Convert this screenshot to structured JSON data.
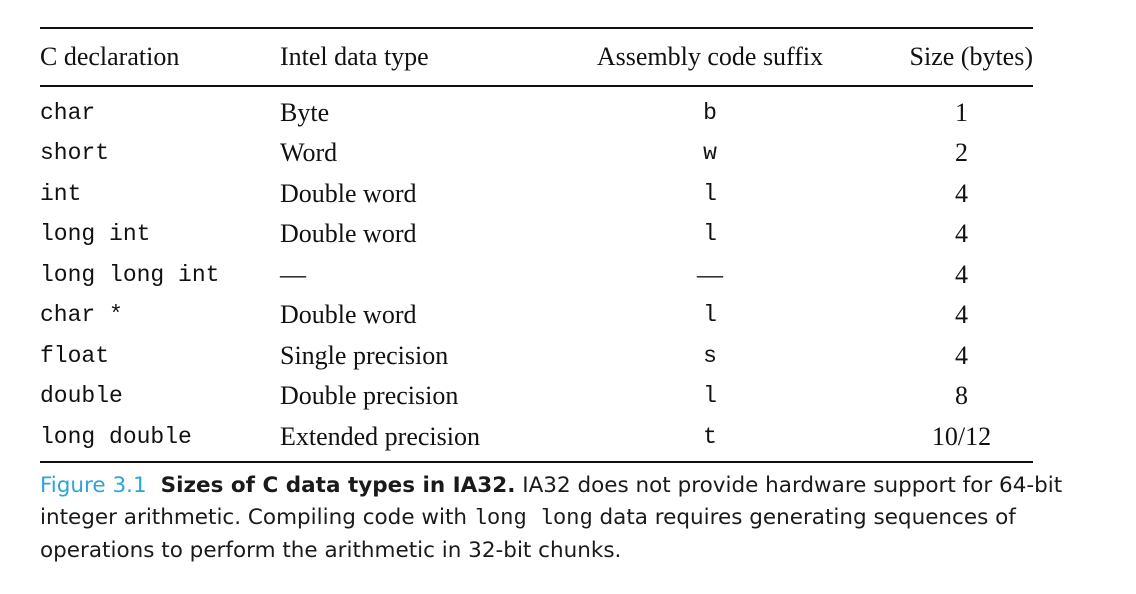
{
  "table": {
    "headers": [
      "C declaration",
      "Intel data type",
      "Assembly code suffix",
      "Size (bytes)"
    ],
    "rows": [
      [
        "char",
        "Byte",
        "b",
        "1"
      ],
      [
        "short",
        "Word",
        "w",
        "2"
      ],
      [
        "int",
        "Double word",
        "l",
        "4"
      ],
      [
        "long int",
        "Double word",
        "l",
        "4"
      ],
      [
        "long long int",
        "—",
        "—",
        "4"
      ],
      [
        "char *",
        "Double word",
        "l",
        "4"
      ],
      [
        "float",
        "Single precision",
        "s",
        "4"
      ],
      [
        "double",
        "Double precision",
        "l",
        "8"
      ],
      [
        "long double",
        "Extended precision",
        "t",
        "10/12"
      ]
    ]
  },
  "caption": {
    "label": "Figure 3.1",
    "title": "Sizes of C data types in IA32.",
    "text_part1": " IA32 does not provide hardware support for 64-bit integer arithmetic. Compiling code with ",
    "code": "long long",
    "text_part2": " data requires generating sequences of operations to perform the arithmetic in 32-bit chunks."
  },
  "colors": {
    "figure_label": "#2aa6d9",
    "text": "#111111"
  }
}
